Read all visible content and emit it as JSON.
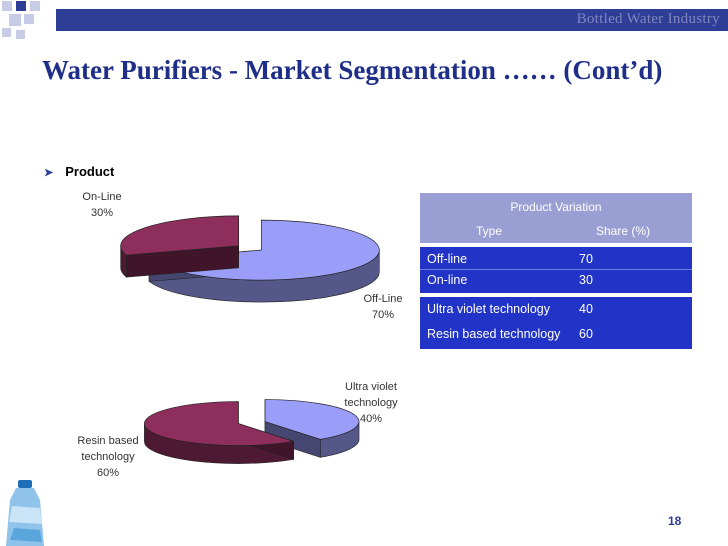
{
  "header": {
    "brand_text": "Bottled Water Industry"
  },
  "slide": {
    "title": "Water Purifiers - Market Segmentation …… (Cont’d)",
    "bullet": "Product",
    "page_number": "18"
  },
  "colors": {
    "header_bar": "#2e3d96",
    "title": "#1f2e88",
    "slice_lavender": "#9b9ef9",
    "slice_maroon": "#8e2e5c",
    "table_header": "#9a9fd3",
    "table_rows": "#2233c8"
  },
  "chart_data": [
    {
      "type": "pie",
      "title": "",
      "slices": [
        {
          "label": "Off-Line",
          "value": 70,
          "value_text": "70%"
        },
        {
          "label": "On-Line",
          "value": 30,
          "value_text": "30%"
        }
      ]
    },
    {
      "type": "pie",
      "title": "",
      "slices": [
        {
          "label": "Ultra violet technology",
          "value": 40,
          "value_text": "40%"
        },
        {
          "label": "Resin based technology",
          "value": 60,
          "value_text": "60%"
        }
      ]
    },
    {
      "type": "table",
      "title": "Product Variation",
      "columns": [
        "Type",
        "Share (%)"
      ],
      "groups": [
        [
          {
            "type": "Off-line",
            "share": "70"
          },
          {
            "type": "On-line",
            "share": "30"
          }
        ],
        [
          {
            "type": "Ultra violet technology",
            "share": "40"
          },
          {
            "type": "Resin based technology",
            "share": "60"
          }
        ]
      ]
    }
  ],
  "pie1_labels": {
    "online_name": "On-Line",
    "online_pct": "30%",
    "offline_name": "Off-Line",
    "offline_pct": "70%"
  },
  "pie2_labels": {
    "uv_line1": "Ultra violet",
    "uv_line2": "technology",
    "uv_pct": "40%",
    "resin_line1": "Resin based",
    "resin_line2": "technology",
    "resin_pct": "60%"
  },
  "table": {
    "title": "Product Variation",
    "col_type": "Type",
    "col_share": "Share (%)",
    "groups": [
      [
        {
          "type": "Off-line",
          "share": "70"
        },
        {
          "type": "On-line",
          "share": "30"
        }
      ],
      [
        {
          "type": "Ultra violet technology",
          "share": "40"
        },
        {
          "type": "Resin based technology",
          "share": "60"
        }
      ]
    ]
  }
}
